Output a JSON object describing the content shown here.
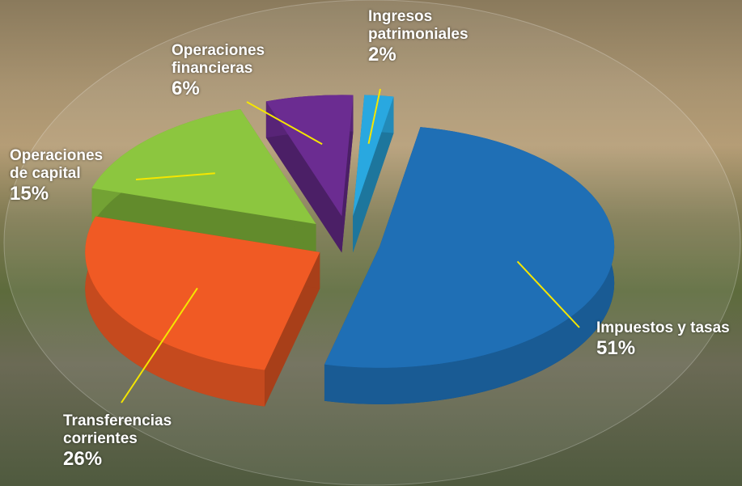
{
  "chart_data": {
    "type": "pie",
    "categories": [
      "Impuestos y tasas",
      "Transferencias corrientes",
      "Operaciones de capital",
      "Operaciones financieras",
      "Ingresos patrimoniales"
    ],
    "values": [
      51,
      26,
      15,
      6,
      2
    ],
    "value_labels": [
      "51%",
      "26%",
      "15%",
      "6%",
      "2%"
    ],
    "colors": [
      "#1f6fb5",
      "#f05a24",
      "#8cc63f",
      "#6b2c91",
      "#29a8e0"
    ]
  }
}
